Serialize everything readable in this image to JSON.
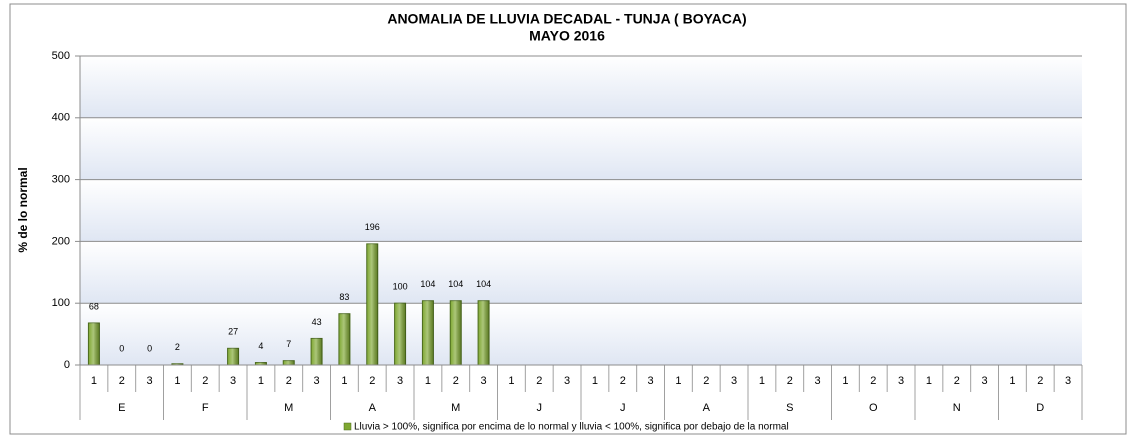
{
  "chart_data": {
    "type": "bar",
    "title": "ANOMALIA DE LLUVIA DECADAL - TUNJA  ( BOYACA)",
    "subtitle": "MAYO 2016",
    "ylabel": "% de lo normal",
    "categories": [
      "1",
      "2",
      "3",
      "1",
      "2",
      "3",
      "1",
      "2",
      "3",
      "1",
      "2",
      "3",
      "1",
      "2",
      "3",
      "1",
      "2",
      "3",
      "1",
      "2",
      "3",
      "1",
      "2",
      "3",
      "1",
      "2",
      "3",
      "1",
      "2",
      "3",
      "1",
      "2",
      "3",
      "1",
      "2",
      "3"
    ],
    "groups": [
      "E",
      "F",
      "M",
      "A",
      "M",
      "J",
      "J",
      "A",
      "S",
      "O",
      "N",
      "D"
    ],
    "series": [
      {
        "name": "Lluvia > 100%, significa por encima de lo normal y lluvia < 100%, significa por debajo de la normal",
        "color": "#7fa832",
        "values": [
          68,
          0,
          0,
          2,
          null,
          27,
          4,
          7,
          43,
          83,
          196,
          100,
          104,
          104,
          104,
          null,
          null,
          null,
          null,
          null,
          null,
          null,
          null,
          null,
          null,
          null,
          null,
          null,
          null,
          null,
          null,
          null,
          null,
          null,
          null,
          null
        ]
      }
    ],
    "ylim": [
      0,
      500
    ],
    "yticks": [
      0,
      100,
      200,
      300,
      400,
      500
    ],
    "grid": true
  }
}
